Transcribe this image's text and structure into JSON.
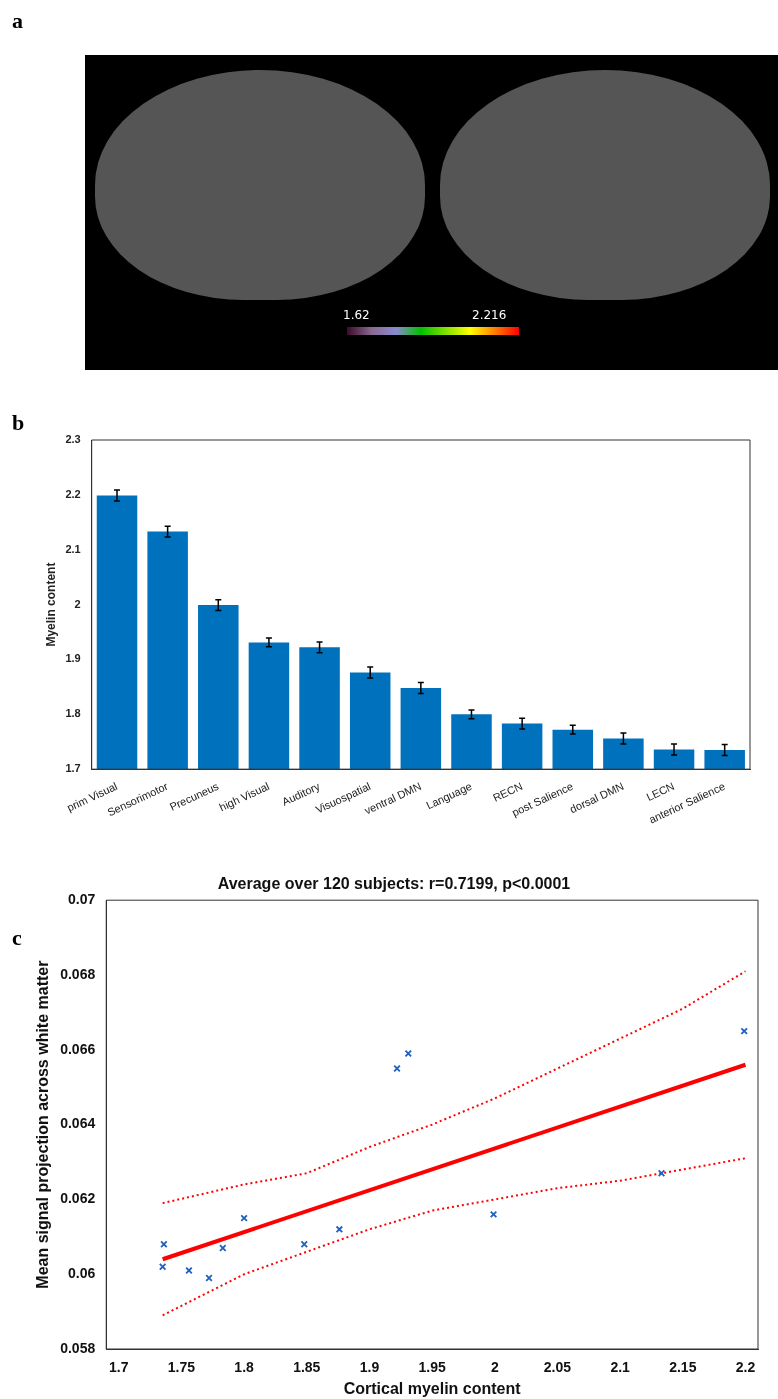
{
  "chart_data": [
    {
      "type": "other",
      "annotations": [
        "a",
        "1.62",
        "2.216"
      ]
    },
    {
      "type": "bar",
      "annotations": [
        "b"
      ],
      "ylabel": "Myelin content",
      "categories": [
        "prim Visual",
        "Sensorimotor",
        "Precuneus",
        "high Visual",
        "Auditory",
        "Visuospatial",
        "ventral DMN",
        "Language",
        "RECN",
        "post Salience",
        "dorsal DMN",
        "LECN",
        "anterior Salience"
      ],
      "values": [
        2.199,
        2.133,
        1.999,
        1.931,
        1.922,
        1.876,
        1.848,
        1.8,
        1.783,
        1.772,
        1.756,
        1.736,
        1.735
      ],
      "errors": [
        0.01,
        0.01,
        0.01,
        0.008,
        0.01,
        0.01,
        0.01,
        0.008,
        0.01,
        0.008,
        0.01,
        0.01,
        0.01
      ],
      "color": "#0072bd",
      "ylim": [
        1.7,
        2.3
      ],
      "yticks": [
        1.7,
        1.8,
        1.9,
        2,
        2.1,
        2.2,
        2.3
      ],
      "grid": false,
      "legend": false
    },
    {
      "type": "scatter",
      "title": "Average over 120 subjects: r=0.7199, p<0.0001",
      "annotations": [
        "c"
      ],
      "xlabel": "Cortical myelin content",
      "ylabel": "Mean signal projection across white matter",
      "xlim": [
        1.69,
        2.21
      ],
      "xticks": [
        1.7,
        1.75,
        1.8,
        1.85,
        1.9,
        1.95,
        2,
        2.05,
        2.1,
        2.15,
        2.2
      ],
      "ylim": [
        0.058,
        0.07
      ],
      "yticks": [
        0.058,
        0.06,
        0.062,
        0.064,
        0.066,
        0.068,
        0.07
      ],
      "grid": false,
      "legend": false,
      "series": [
        {
          "type": "scatter",
          "marker": "cross",
          "color": "#1f5fbf",
          "x": [
            1.735,
            1.736,
            1.756,
            1.772,
            1.783,
            1.8,
            1.848,
            1.876,
            1.922,
            1.931,
            1.999,
            2.133,
            2.199
          ],
          "values": [
            0.0602,
            0.0608,
            0.0601,
            0.0599,
            0.0607,
            0.0615,
            0.0608,
            0.0612,
            0.0655,
            0.0659,
            0.0616,
            0.0627,
            0.0665
          ]
        },
        {
          "type": "line",
          "marker": "none",
          "color": "#ff0000",
          "line_style": "solid",
          "x": [
            1.735,
            2.2
          ],
          "values": [
            0.0604,
            0.0656
          ]
        },
        {
          "type": "line",
          "color": "#ff0000",
          "line_style": "dotted",
          "marker": "none",
          "x": [
            1.735,
            1.8,
            1.85,
            1.9,
            1.95,
            2,
            2.05,
            2.1,
            2.15,
            2.2
          ],
          "values": [
            0.0619,
            0.0624,
            0.0627,
            0.0634,
            0.064,
            0.0647,
            0.0655,
            0.0663,
            0.0671,
            0.0681
          ]
        },
        {
          "type": "line",
          "color": "#ff0000",
          "line_style": "dotted",
          "marker": "none",
          "x": [
            1.735,
            1.8,
            1.85,
            1.9,
            1.95,
            2,
            2.05,
            2.1,
            2.15,
            2.2
          ],
          "values": [
            0.0589,
            0.06,
            0.0606,
            0.0612,
            0.0617,
            0.062,
            0.0623,
            0.0625,
            0.0628,
            0.0631
          ]
        }
      ]
    }
  ]
}
